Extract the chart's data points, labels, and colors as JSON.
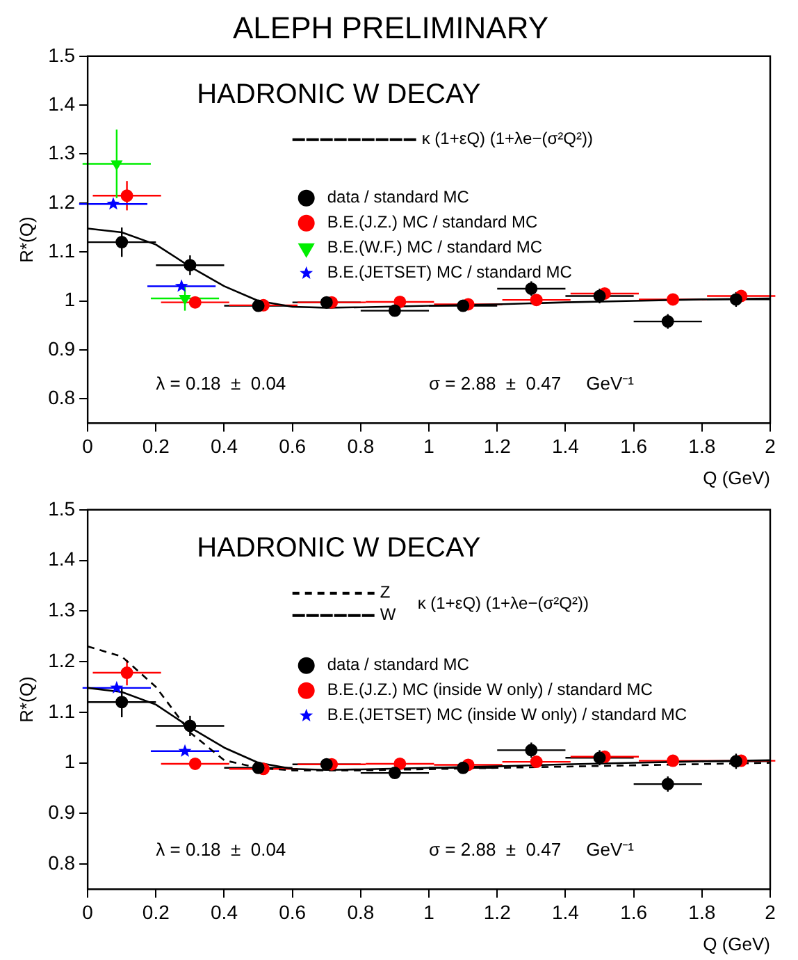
{
  "chart_data": [
    {
      "type": "scatter",
      "title": "ALEPH PRELIMINARY",
      "subtitle": "HADRONIC W DECAY",
      "xlabel": "Q (GeV)",
      "ylabel": "R*(Q)",
      "xlim": [
        0,
        2
      ],
      "xticks": [
        0,
        0.2,
        0.4,
        0.6,
        0.8,
        1,
        1.2,
        1.4,
        1.6,
        1.8,
        2
      ],
      "ylim": [
        0.75,
        1.5
      ],
      "yticks": [
        0.8,
        0.9,
        1,
        1.1,
        1.2,
        1.3,
        1.4,
        1.5
      ],
      "grid": false,
      "legend": "top right",
      "annotations": [
        "λ = 0.18  ±  0.04",
        "σ = 2.88  ±  0.47     GeV⁻¹"
      ],
      "series": [
        {
          "name": "κ (1+εQ) (1+λe−(σ²Q²))",
          "type": "line",
          "color": "#000000",
          "marker": "none",
          "line_style": "solid",
          "x": [
            0,
            0.1,
            0.2,
            0.3,
            0.4,
            0.5,
            0.6,
            0.7,
            0.8,
            1,
            1.2,
            1.4,
            1.6,
            1.8,
            2
          ],
          "values": [
            1.148,
            1.14,
            1.115,
            1.07,
            1.03,
            1.0,
            0.988,
            0.986,
            0.987,
            0.99,
            0.993,
            0.997,
            1.0,
            1.003,
            1.005
          ]
        },
        {
          "name": "data / standard MC",
          "color": "#000000",
          "marker": "circle",
          "x": [
            0.1,
            0.3,
            0.5,
            0.7,
            0.9,
            1.1,
            1.3,
            1.5,
            1.7,
            1.9
          ],
          "values": [
            1.12,
            1.073,
            0.99,
            0.997,
            0.98,
            0.99,
            1.025,
            1.01,
            0.958,
            1.003
          ],
          "errors": [
            0.03,
            0.02,
            0.01,
            0.01,
            0.01,
            0.01,
            0.015,
            0.015,
            0.015,
            0.015
          ],
          "xerrors": [
            0.1,
            0.1,
            0.1,
            0.1,
            0.1,
            0.1,
            0.1,
            0.1,
            0.1,
            0.1
          ]
        },
        {
          "name": "B.E.(J.Z.) MC / standard MC",
          "color": "#ff0000",
          "marker": "circle",
          "x": [
            0.115,
            0.315,
            0.515,
            0.715,
            0.915,
            1.115,
            1.315,
            1.515,
            1.715,
            1.915
          ],
          "values": [
            1.215,
            0.997,
            0.991,
            0.997,
            0.998,
            0.993,
            1.002,
            1.015,
            1.003,
            1.01
          ],
          "errors": [
            0.03,
            null,
            null,
            null,
            null,
            null,
            null,
            null,
            null,
            null
          ],
          "xerrors": [
            0.1,
            0.1,
            0.1,
            0.1,
            0.1,
            0.1,
            0.1,
            0.1,
            0.1,
            0.1
          ]
        },
        {
          "name": "B.E.(W.F.) MC / standard MC",
          "color": "#00ee00",
          "marker": "triangle",
          "x": [
            0.085,
            0.285
          ],
          "values": [
            1.28,
            1.005
          ],
          "errors": [
            0.07,
            0.025
          ],
          "xerrors": [
            0.1,
            0.1
          ]
        },
        {
          "name": "B.E.(JETSET) MC / standard MC",
          "color": "#0000ff",
          "marker": "star",
          "x": [
            0.075,
            0.275
          ],
          "values": [
            1.198,
            1.03
          ],
          "xerrors": [
            0.1,
            0.1
          ]
        }
      ]
    },
    {
      "type": "scatter",
      "subtitle": "HADRONIC W DECAY",
      "xlabel": "Q (GeV)",
      "ylabel": "R*(Q)",
      "xlim": [
        0,
        2
      ],
      "xticks": [
        0,
        0.2,
        0.4,
        0.6,
        0.8,
        1,
        1.2,
        1.4,
        1.6,
        1.8,
        2
      ],
      "ylim": [
        0.75,
        1.5
      ],
      "yticks": [
        0.8,
        0.9,
        1,
        1.1,
        1.2,
        1.3,
        1.4,
        1.5
      ],
      "grid": false,
      "legend": "top right",
      "annotations": [
        "κ (1+εQ) (1+λe−(σ²Q²))",
        "λ = 0.18  ±  0.04",
        "σ = 2.88  ±  0.47     GeV⁻¹"
      ],
      "series": [
        {
          "name": "Z",
          "type": "line",
          "color": "#000000",
          "marker": "none",
          "line_style": "dashed",
          "x": [
            0,
            0.1,
            0.2,
            0.3,
            0.4,
            0.5,
            0.6,
            0.8,
            1.2,
            1.6,
            2
          ],
          "values": [
            1.23,
            1.21,
            1.15,
            1.06,
            1.005,
            0.99,
            0.985,
            0.985,
            0.99,
            0.995,
            1.0
          ]
        },
        {
          "name": "W",
          "type": "line",
          "color": "#000000",
          "marker": "none",
          "line_style": "solid",
          "x": [
            0,
            0.1,
            0.2,
            0.3,
            0.4,
            0.5,
            0.6,
            0.7,
            0.8,
            1,
            1.2,
            1.4,
            1.6,
            1.8,
            2
          ],
          "values": [
            1.148,
            1.14,
            1.115,
            1.07,
            1.03,
            1.0,
            0.988,
            0.986,
            0.987,
            0.99,
            0.993,
            0.997,
            1.0,
            1.003,
            1.005
          ]
        },
        {
          "name": "data / standard MC",
          "color": "#000000",
          "marker": "circle",
          "x": [
            0.1,
            0.3,
            0.5,
            0.7,
            0.9,
            1.1,
            1.3,
            1.5,
            1.7,
            1.9
          ],
          "values": [
            1.12,
            1.073,
            0.99,
            0.997,
            0.98,
            0.99,
            1.025,
            1.01,
            0.958,
            1.003
          ],
          "errors": [
            0.03,
            0.02,
            0.01,
            0.01,
            0.01,
            0.01,
            0.015,
            0.015,
            0.015,
            0.015
          ],
          "xerrors": [
            0.1,
            0.1,
            0.1,
            0.1,
            0.1,
            0.1,
            0.1,
            0.1,
            0.1,
            0.1
          ]
        },
        {
          "name": "B.E.(J.Z.) MC (inside W only) / standard MC",
          "color": "#ff0000",
          "marker": "circle",
          "x": [
            0.115,
            0.315,
            0.515,
            0.715,
            0.915,
            1.115,
            1.315,
            1.515,
            1.715,
            1.915
          ],
          "values": [
            1.178,
            0.998,
            0.988,
            0.997,
            0.998,
            0.996,
            1.002,
            1.012,
            1.004,
            1.004
          ],
          "errors": [
            0.025,
            null,
            null,
            null,
            null,
            null,
            null,
            null,
            null,
            null
          ],
          "xerrors": [
            0.1,
            0.1,
            0.1,
            0.1,
            0.1,
            0.1,
            0.1,
            0.1,
            0.1,
            0.1
          ]
        },
        {
          "name": "B.E.(JETSET) MC (inside W only) / standard MC",
          "color": "#0000ff",
          "marker": "star",
          "x": [
            0.085,
            0.285
          ],
          "values": [
            1.148,
            1.023
          ],
          "xerrors": [
            0.1,
            0.1
          ]
        }
      ]
    }
  ]
}
